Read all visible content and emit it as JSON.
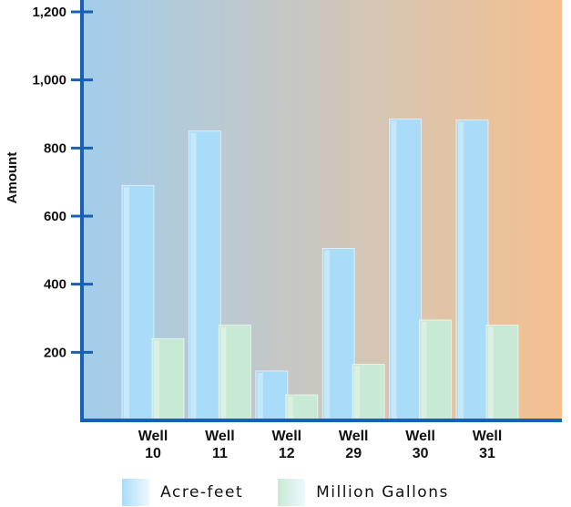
{
  "chart_data": {
    "type": "bar",
    "title": "",
    "xlabel": "",
    "ylabel": "Amount",
    "categories": [
      [
        "Well",
        "10"
      ],
      [
        "Well",
        "11"
      ],
      [
        "Well",
        "12"
      ],
      [
        "Well",
        "29"
      ],
      [
        "Well",
        "30"
      ],
      [
        "Well",
        "31"
      ]
    ],
    "series": [
      {
        "name": "Acre-feet",
        "values": [
          690,
          850,
          145,
          505,
          885,
          882
        ],
        "color": "#a9dcf9"
      },
      {
        "name": "Million Gallons",
        "values": [
          240,
          280,
          75,
          165,
          295,
          280
        ],
        "color": "#c8e9d4"
      }
    ],
    "y_ticks": [
      "200",
      "400",
      "600",
      "800",
      "1,000",
      "1,200"
    ],
    "y_tick_values": [
      200,
      400,
      600,
      800,
      1000,
      1200
    ],
    "ylim": [
      0,
      1200
    ],
    "grid": false,
    "legend_position": "bottom",
    "background_gradient": [
      "#a2cdec",
      "#f5c08f"
    ],
    "axis_color": "#1560b8"
  }
}
